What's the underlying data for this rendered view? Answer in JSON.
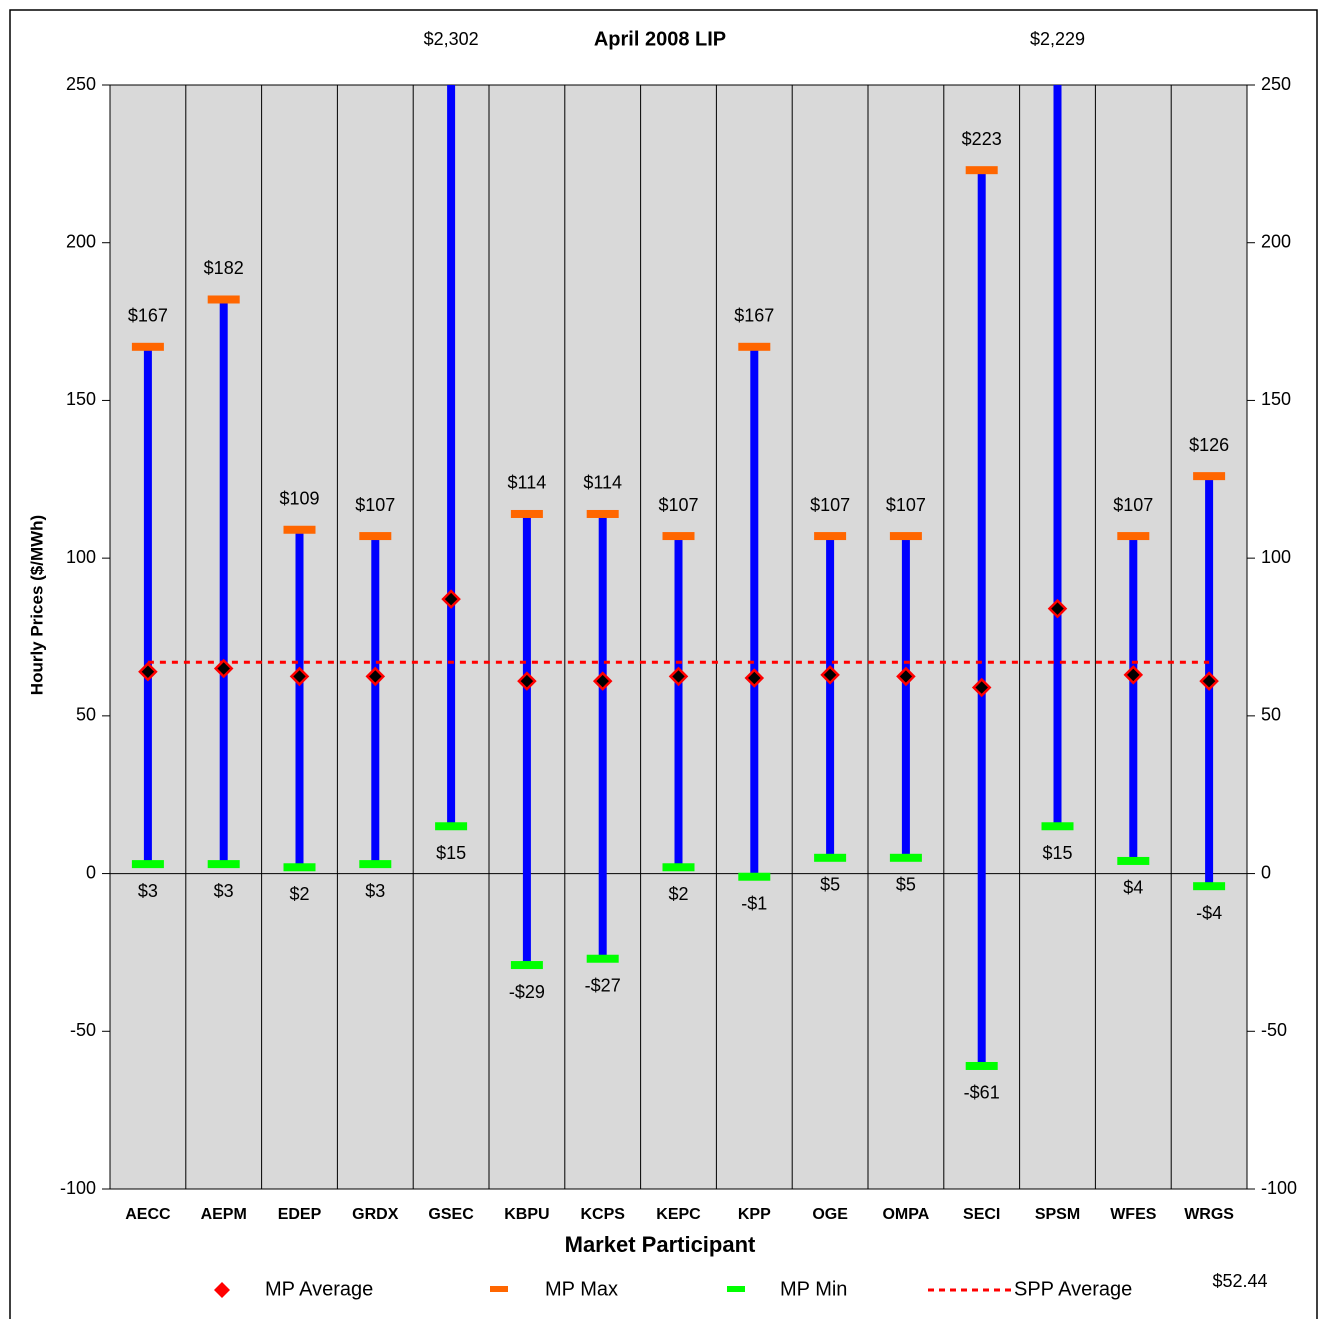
{
  "chart_data": {
    "type": "range",
    "title": "April 2008 LIP",
    "x_label": "Market Participant",
    "y_label": "Hourly Prices ($/MWh)",
    "categories": [
      "AECC",
      "AEPM",
      "EDEP",
      "GRDX",
      "GSEC",
      "KBPU",
      "KCPS",
      "KEPC",
      "KPP",
      "OGE",
      "OMPA",
      "SECI",
      "SPSM",
      "WFES",
      "WRGS"
    ],
    "series": [
      {
        "name": "MP Average",
        "color": "#ff0000",
        "values": [
          64,
          65,
          62.5,
          62.5,
          87,
          61,
          61,
          62.5,
          62,
          63,
          62.5,
          59,
          84,
          63,
          61
        ]
      },
      {
        "name": "MP Max",
        "color": "#ff6600",
        "values": [
          167,
          182,
          109,
          107,
          2302,
          114,
          114,
          107,
          167,
          107,
          107,
          223,
          2229,
          107,
          126
        ],
        "value_labels": [
          "$167",
          "$182",
          "$109",
          "$107",
          "$2,302",
          "$114",
          "$114",
          "$107",
          "$167",
          "$107",
          "$107",
          "$223",
          "$2,229",
          "$107",
          "$126"
        ]
      },
      {
        "name": "MP Min",
        "color": "#00ff00",
        "values": [
          3,
          3,
          2,
          3,
          15,
          -29,
          -27,
          2,
          -1,
          5,
          5,
          -61,
          15,
          4,
          -4
        ],
        "value_labels": [
          "$3",
          "$3",
          "$2",
          "$3",
          "$15",
          "-$29",
          "-$27",
          "$2",
          "-$1",
          "$5",
          "$5",
          "-$61",
          "$15",
          "$4",
          "-$4"
        ]
      },
      {
        "name": "SPP Average",
        "color": "#ff0000",
        "values": [
          67,
          67,
          67,
          67,
          67,
          67,
          67,
          67,
          67,
          67,
          67,
          67,
          67,
          67,
          67
        ]
      }
    ],
    "range_color": "#0000ff",
    "annotation": "$52.44",
    "ylim": [
      -100,
      250
    ],
    "yticks": [
      -100,
      -50,
      0,
      50,
      100,
      150,
      200,
      250
    ],
    "y2lim": [
      -100,
      250
    ],
    "y2ticks": [
      -100,
      -50,
      0,
      50,
      100,
      150,
      200,
      250
    ]
  }
}
